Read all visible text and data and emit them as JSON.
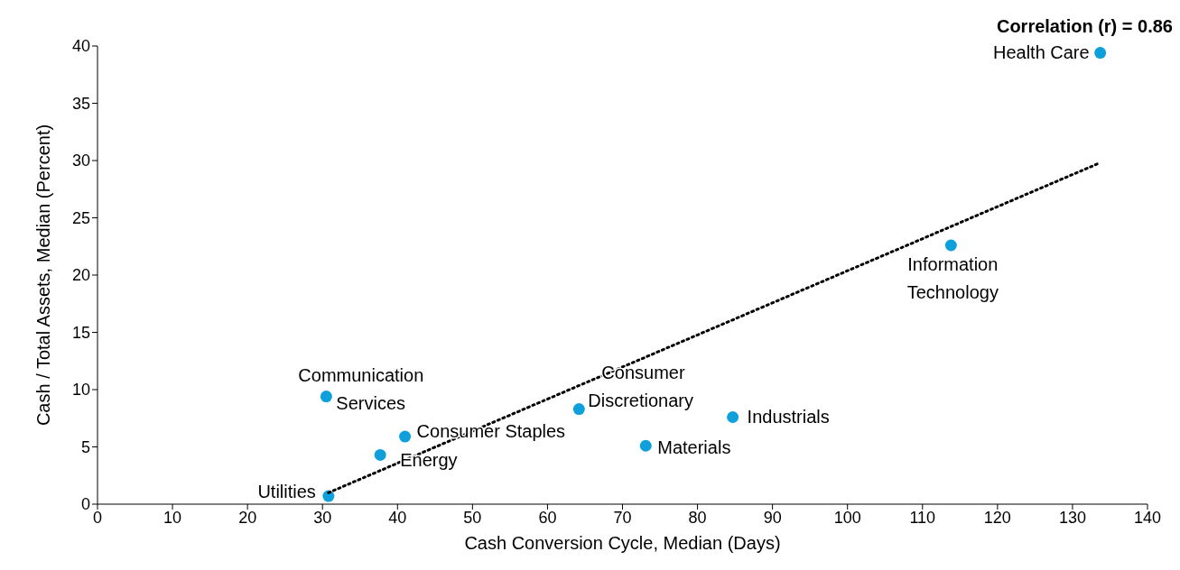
{
  "chart_data": {
    "type": "scatter",
    "xlabel": "Cash Conversion Cycle, Median (Days)",
    "ylabel": "Cash / Total Assets, Median (Percent)",
    "xlim": [
      0,
      140
    ],
    "xticks": [
      0,
      10,
      20,
      30,
      40,
      50,
      60,
      70,
      80,
      90,
      100,
      110,
      120,
      130,
      140
    ],
    "ylim": [
      0,
      40
    ],
    "yticks": [
      0,
      5,
      10,
      15,
      20,
      25,
      30,
      35,
      40
    ],
    "grid": false,
    "legend": false,
    "marker": "circle",
    "series": [
      {
        "color": "#0fa0dc",
        "x": [
          133.7,
          113.8,
          84.7,
          73.1,
          64.2,
          41.0,
          37.7,
          30.5,
          30.8
        ],
        "values": [
          39.4,
          22.6,
          7.6,
          5.1,
          8.3,
          5.9,
          4.3,
          9.4,
          0.7
        ]
      },
      {
        "type": "line",
        "color": "#000000",
        "line_style": "dotted",
        "marker": "none",
        "x": [
          30.8,
          133.3
        ],
        "values": [
          1.0,
          29.7
        ]
      }
    ],
    "annotations": [
      "Correlation (r) = 0.86",
      {
        "text": "Health Care",
        "x": 133.7,
        "y": 39.4
      },
      {
        "text": "Information Technology",
        "x": 113.8,
        "y": 22.6
      },
      {
        "text": "Industrials",
        "x": 84.7,
        "y": 7.6
      },
      {
        "text": "Materials",
        "x": 73.1,
        "y": 5.1
      },
      {
        "text": "Consumer Discretionary",
        "x": 64.2,
        "y": 8.3
      },
      {
        "text": "Consumer Staples",
        "x": 41.0,
        "y": 5.9
      },
      {
        "text": "Energy",
        "x": 37.7,
        "y": 4.3
      },
      {
        "text": "Communication Services",
        "x": 30.5,
        "y": 9.4
      },
      {
        "text": "Utilities",
        "x": 30.8,
        "y": 0.7
      }
    ]
  }
}
